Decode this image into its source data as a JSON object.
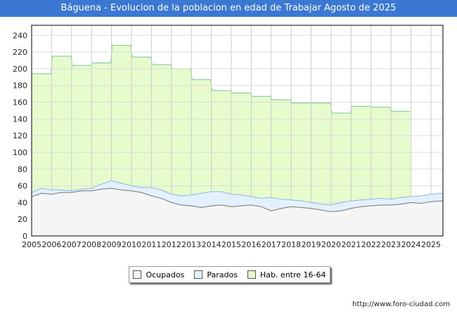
{
  "chart_data": {
    "type": "area",
    "title": "Báguena - Evolucion de la poblacion en edad de Trabajar Agosto de 2025",
    "xlabel": "",
    "ylabel": "",
    "xlim": [
      2005,
      2025.6
    ],
    "ylim": [
      0,
      252
    ],
    "yticks": [
      0,
      20,
      40,
      60,
      80,
      100,
      120,
      140,
      160,
      180,
      200,
      220,
      240
    ],
    "xticks": [
      2005,
      2006,
      2007,
      2008,
      2009,
      2010,
      2011,
      2012,
      2013,
      2014,
      2015,
      2016,
      2017,
      2018,
      2019,
      2020,
      2021,
      2022,
      2023,
      2024,
      2025
    ],
    "grid": true,
    "legend": {
      "placement": "bottom",
      "entries": [
        "Ocupados",
        "Parados",
        "Hab. entre 16-64"
      ]
    },
    "colors": {
      "ocupados_fill": "#f5f5f5",
      "ocupados_line": "#777777",
      "parados_fill": "#e3f0fd",
      "parados_line": "#8fb4ec",
      "hab_fill": "#e6fccc",
      "hab_line": "#78c498"
    },
    "hab": {
      "years": [
        2005,
        2006,
        2007,
        2008,
        2009,
        2010,
        2011,
        2012,
        2013,
        2014,
        2015,
        2016,
        2017,
        2018,
        2019,
        2020,
        2021,
        2022,
        2023
      ],
      "values": [
        194,
        215,
        204,
        207,
        228,
        214,
        205,
        200,
        187,
        174,
        171,
        167,
        163,
        159,
        159,
        147,
        155,
        154,
        149
      ]
    },
    "x": [
      2005,
      2005.5,
      2006,
      2006.5,
      2007,
      2007.5,
      2008,
      2008.5,
      2009,
      2009.5,
      2010,
      2010.5,
      2011,
      2011.5,
      2012,
      2012.5,
      2013,
      2013.5,
      2014,
      2014.5,
      2015,
      2015.5,
      2016,
      2016.5,
      2017,
      2017.5,
      2018,
      2018.5,
      2019,
      2019.5,
      2020,
      2020.5,
      2021,
      2021.5,
      2022,
      2022.5,
      2023,
      2023.5,
      2024,
      2024.5,
      2025,
      2025.5
    ],
    "series": [
      {
        "name": "Ocupados",
        "values": [
          47,
          51,
          50,
          52,
          52,
          54,
          54,
          56,
          57,
          55,
          54,
          52,
          48,
          45,
          40,
          37,
          36,
          34,
          36,
          37,
          35,
          36,
          37,
          35,
          30,
          33,
          35,
          34,
          33,
          31,
          29,
          30,
          33,
          35,
          36,
          37,
          37,
          38,
          40,
          39,
          41,
          42
        ]
      },
      {
        "name": "Parados",
        "values": [
          5,
          6,
          5,
          3,
          2,
          2,
          3,
          6,
          9,
          8,
          6,
          6,
          10,
          10,
          10,
          11,
          13,
          17,
          17,
          16,
          15,
          13,
          10,
          10,
          16,
          11,
          8,
          8,
          7,
          7,
          8,
          10,
          9,
          8,
          8,
          8,
          7,
          8,
          7,
          9,
          9,
          9
        ]
      }
    ]
  },
  "footer": {
    "url": "http://www.foro-ciudad.com"
  }
}
